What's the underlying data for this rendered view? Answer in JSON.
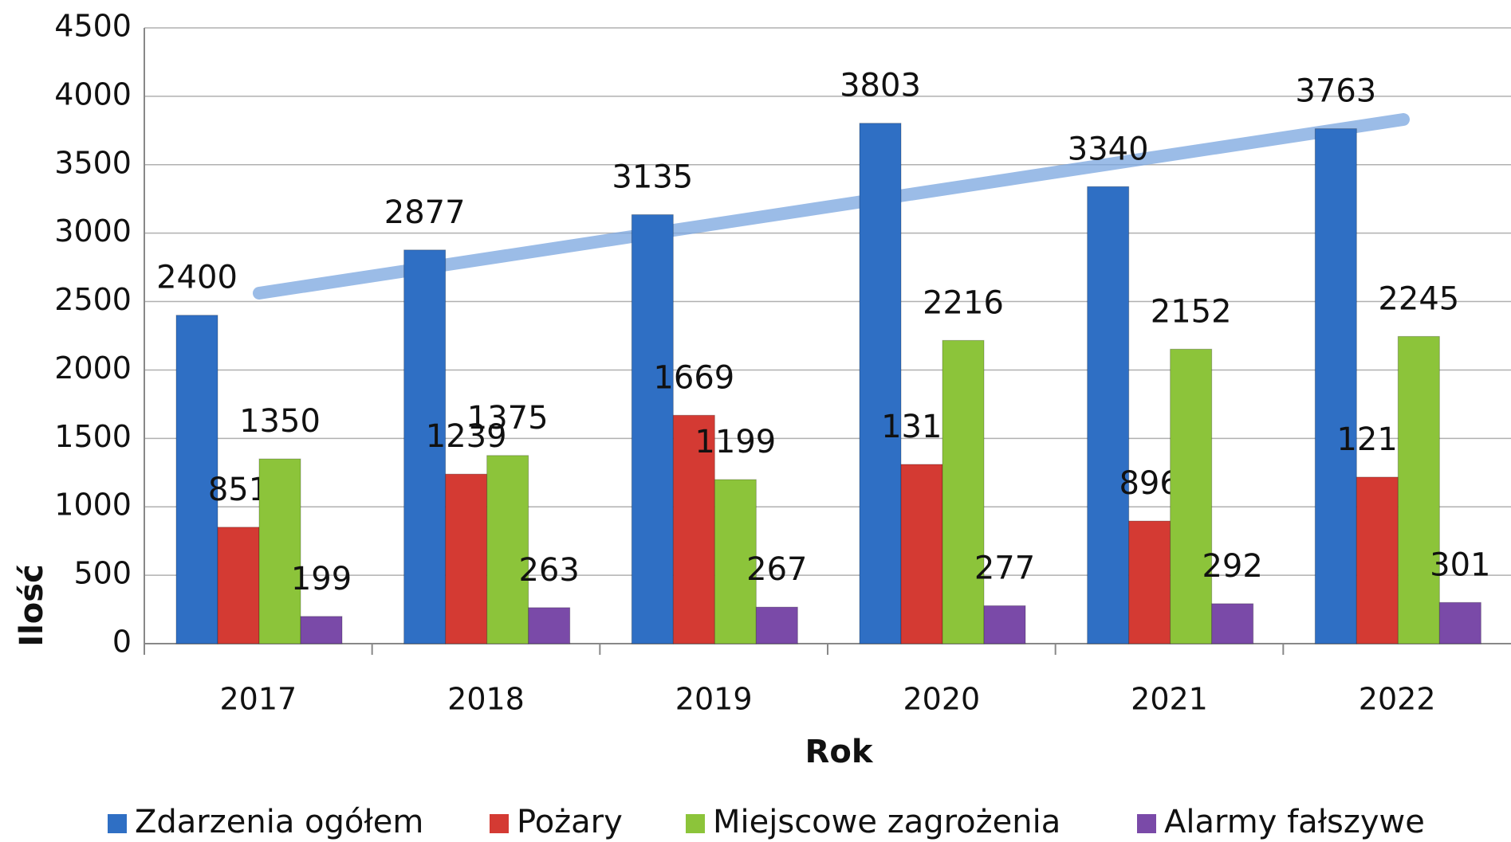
{
  "chart_data": {
    "type": "bar",
    "categories": [
      "2017",
      "2018",
      "2019",
      "2020",
      "2021",
      "2022"
    ],
    "series": [
      {
        "name": "Zdarzenia ogółem",
        "color": "#2f6fc4",
        "values": [
          2400,
          2877,
          3135,
          3803,
          3340,
          3763
        ]
      },
      {
        "name": "Pożary",
        "color": "#d43a33",
        "values": [
          851,
          1239,
          1669,
          1310,
          896,
          1217
        ]
      },
      {
        "name": "Miejscowe zagrożenia",
        "color": "#8cc43a",
        "values": [
          1350,
          1375,
          1199,
          2216,
          2152,
          2245
        ]
      },
      {
        "name": "Alarmy fałszywe",
        "color": "#7a4aa8",
        "values": [
          199,
          263,
          267,
          277,
          292,
          301
        ]
      }
    ],
    "x_label": "Rok",
    "y_label": "Ilość",
    "ylim": [
      0,
      4500
    ],
    "yticks": [
      0,
      500,
      1000,
      1500,
      2000,
      2500,
      3000,
      3500,
      4000,
      4500
    ],
    "grid": true,
    "legend": "bottom"
  }
}
